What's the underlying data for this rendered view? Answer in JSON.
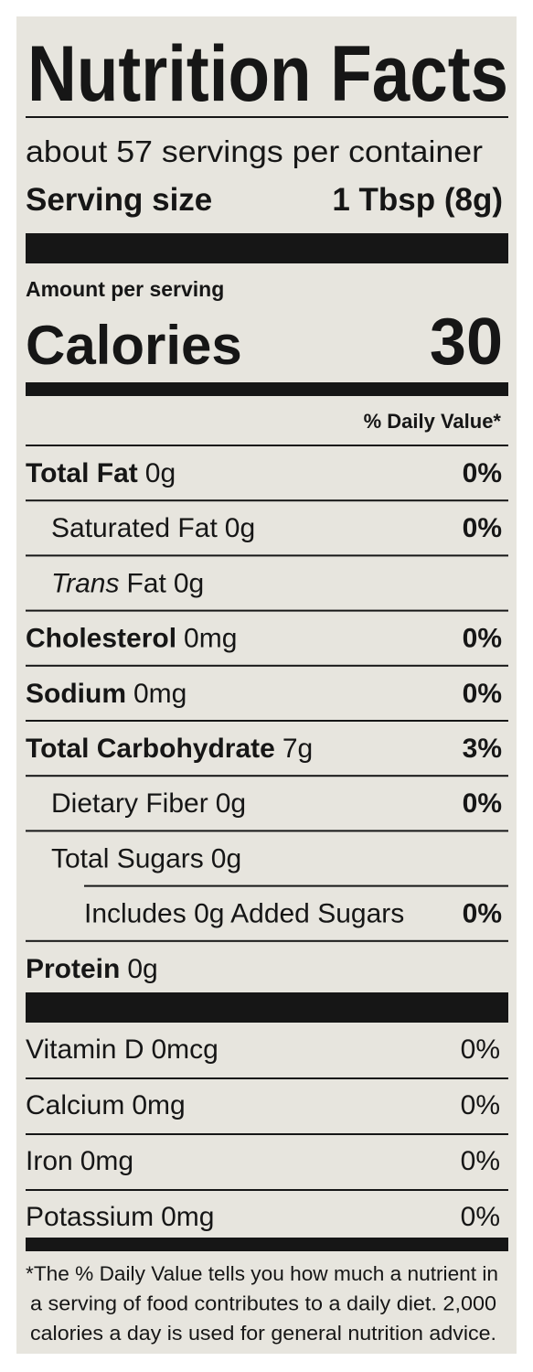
{
  "title": "Nutrition Facts",
  "servings": "about 57 servings per container",
  "serving_size": {
    "label": "Serving size",
    "value": "1 Tbsp (8g)"
  },
  "amount_per_serving": "Amount per serving",
  "calories": {
    "label": "Calories",
    "value": "30"
  },
  "daily_value_header": "% Daily Value*",
  "nutrients": [
    {
      "name": "Total Fat",
      "amount": "0g",
      "dv": "0%"
    },
    {
      "name": "Saturated Fat",
      "amount": "0g",
      "dv": "0%"
    },
    {
      "name_italic": "Trans",
      "name": "Fat",
      "amount": "0g"
    },
    {
      "name": "Cholesterol",
      "amount": "0mg",
      "dv": "0%"
    },
    {
      "name": "Sodium",
      "amount": "0mg",
      "dv": "0%"
    },
    {
      "name": "Total Carbohydrate",
      "amount": "7g",
      "dv": "3%"
    },
    {
      "name": "Dietary Fiber",
      "amount": "0g",
      "dv": "0%"
    },
    {
      "name": "Total Sugars",
      "amount": "0g"
    },
    {
      "name": "Includes 0g Added Sugars",
      "dv": "0%"
    },
    {
      "name": "Protein",
      "amount": "0g"
    }
  ],
  "vitamins": [
    {
      "name": "Vitamin D",
      "amount": "0mcg",
      "dv": "0%"
    },
    {
      "name": "Calcium",
      "amount": "0mg",
      "dv": "0%"
    },
    {
      "name": "Iron",
      "amount": "0mg",
      "dv": "0%"
    },
    {
      "name": "Potassium",
      "amount": "0mg",
      "dv": "0%"
    }
  ],
  "footnote": [
    "*The % Daily Value tells you how much a nutrient in",
    "a serving of food contributes to a daily diet. 2,000",
    "calories a day is used for general nutrition advice."
  ]
}
